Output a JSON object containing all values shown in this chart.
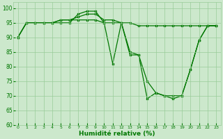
{
  "xlabel": "Humidité relative (%)",
  "xlim": [
    -0.5,
    23.5
  ],
  "ylim": [
    60,
    102
  ],
  "yticks": [
    60,
    65,
    70,
    75,
    80,
    85,
    90,
    95,
    100
  ],
  "xticks": [
    0,
    1,
    2,
    3,
    4,
    5,
    6,
    7,
    8,
    9,
    10,
    11,
    12,
    13,
    14,
    15,
    16,
    17,
    18,
    19,
    20,
    21,
    22,
    23
  ],
  "bg_color": "#cce8cc",
  "line_color": "#007700",
  "grid_color": "#99cc99",
  "series": [
    [
      90,
      95,
      95,
      95,
      95,
      95,
      95,
      98,
      99,
      99,
      95,
      81,
      95,
      85,
      84,
      69,
      71,
      70,
      69,
      70,
      79,
      89,
      94,
      94
    ],
    [
      90,
      95,
      95,
      95,
      95,
      96,
      96,
      97,
      98,
      98,
      96,
      96,
      95,
      84,
      84,
      75,
      71,
      70,
      70,
      70,
      79,
      89,
      94,
      94
    ],
    [
      90,
      95,
      95,
      95,
      95,
      96,
      96,
      96,
      96,
      96,
      95,
      95,
      95,
      95,
      94,
      94,
      94,
      94,
      94,
      94,
      94,
      94,
      94,
      94
    ]
  ]
}
